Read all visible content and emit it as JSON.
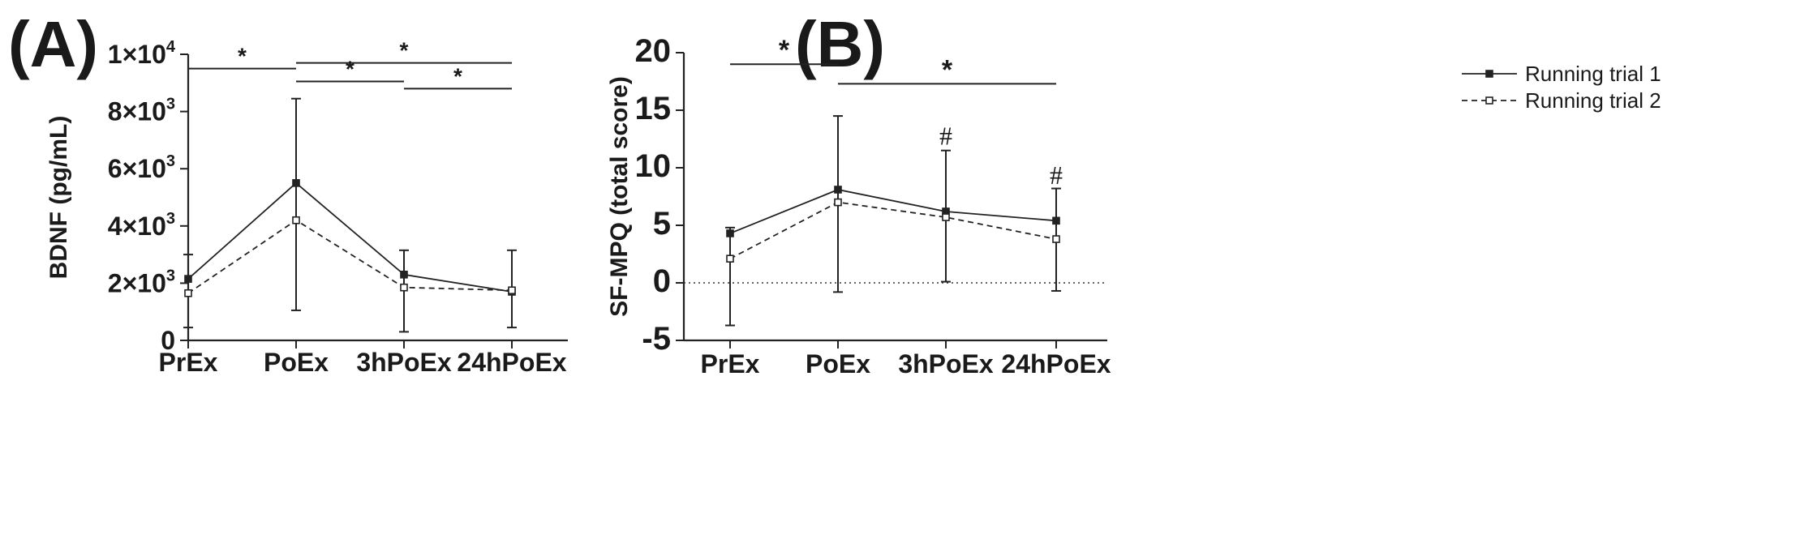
{
  "chart_data": [
    {
      "panel": "(A)",
      "type": "line",
      "title": "",
      "xlabel": "",
      "ylabel": "BDNF (pg/mL)",
      "categories": [
        "PrEx",
        "PoEx",
        "3hPoEx",
        "24hPoEx"
      ],
      "ylim": [
        0,
        10000
      ],
      "yticks": [
        0,
        2000,
        4000,
        6000,
        8000,
        10000
      ],
      "ytick_labels": [
        "0",
        "2×10",
        "4×10",
        "6×10",
        "8×10",
        "1×10"
      ],
      "ytick_sups": [
        "",
        "3",
        "3",
        "3",
        "3",
        "4"
      ],
      "grid": false,
      "series": [
        {
          "name": "Running trial 1",
          "marker": "filled-square",
          "line": "solid",
          "values": [
            2150,
            5500,
            2300,
            1700
          ],
          "err_upper": [
            3000,
            8450,
            3150,
            3150
          ],
          "err_lower": [
            450,
            1050,
            300,
            450
          ]
        },
        {
          "name": "Running trial 2",
          "marker": "open-square",
          "line": "dashed",
          "values": [
            1650,
            4200,
            1850,
            1750
          ]
        }
      ],
      "significance": [
        {
          "from": 0,
          "to": 1,
          "level": 9500,
          "label": "*"
        },
        {
          "from": 1,
          "to": 3,
          "level": 9700,
          "label": "*"
        },
        {
          "from": 1,
          "to": 2,
          "level": 9050,
          "label": "*"
        },
        {
          "from": 2,
          "to": 3,
          "level": 8800,
          "label": "*"
        }
      ]
    },
    {
      "panel": "(B)",
      "type": "line",
      "title": "",
      "xlabel": "",
      "ylabel": "SF-MPQ (total score)",
      "categories": [
        "PrEx",
        "PoEx",
        "3hPoEx",
        "24hPoEx"
      ],
      "ylim": [
        -5,
        20
      ],
      "yticks": [
        -5,
        0,
        5,
        10,
        15,
        20
      ],
      "ytick_labels": [
        "-5",
        "0",
        "5",
        "10",
        "15",
        "20"
      ],
      "grid": false,
      "reference_line": {
        "y": 0,
        "style": "dotted"
      },
      "legend": {
        "position": "top-right"
      },
      "series": [
        {
          "name": "Running trial 1",
          "marker": "filled-square",
          "line": "solid",
          "values": [
            4.3,
            8.1,
            6.2,
            5.4
          ],
          "err_upper": [
            4.8,
            14.5,
            11.5,
            8.2
          ],
          "err_lower": [
            -3.7,
            -0.8,
            0.1,
            -0.7
          ]
        },
        {
          "name": "Running trial 2",
          "marker": "open-square",
          "line": "dashed",
          "values": [
            2.1,
            7.0,
            5.7,
            3.8
          ]
        }
      ],
      "significance": [
        {
          "from": 0,
          "to": 1,
          "level": 19.0,
          "label": "*"
        },
        {
          "from": 1,
          "to": 3,
          "level": 17.3,
          "label": "*"
        }
      ],
      "annotations": [
        {
          "category": 2,
          "y": 12.0,
          "label": "#"
        },
        {
          "category": 3,
          "y": 8.6,
          "label": "#"
        }
      ]
    }
  ]
}
